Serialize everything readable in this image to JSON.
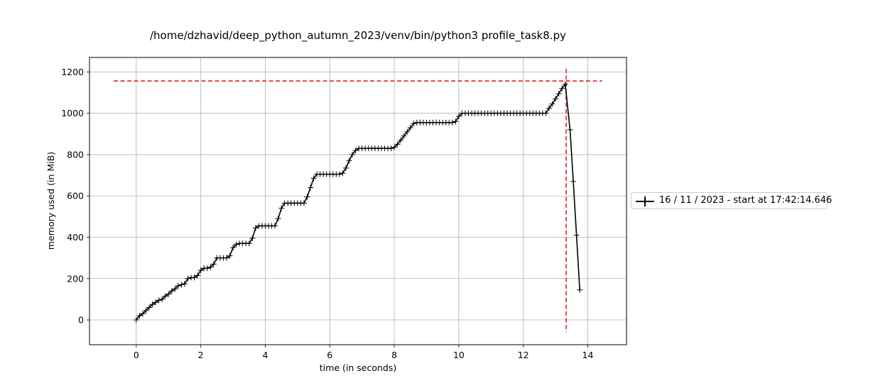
{
  "chart_data": {
    "type": "line",
    "title": "/home/dzhavid/deep_python_autumn_2023/venv/bin/python3 profile_task8.py",
    "xlabel": "time (in seconds)",
    "ylabel": "memory used (in MiB)",
    "xlim": [
      -1.45,
      15.2
    ],
    "ylim": [
      -120,
      1270
    ],
    "xticks": [
      0,
      2,
      4,
      6,
      8,
      10,
      12,
      14
    ],
    "xtick_labels": [
      "0",
      "2",
      "4",
      "6",
      "8",
      "10",
      "12",
      "14"
    ],
    "yticks": [
      0,
      200,
      400,
      600,
      800,
      1000,
      1200
    ],
    "ytick_labels": [
      "0",
      "200",
      "400",
      "600",
      "800",
      "1000",
      "1200"
    ],
    "grid": true,
    "legend_position": "outside-right",
    "colors": {
      "series": "#000000",
      "peak_lines": "#d62728",
      "grid": "#b0b0b0"
    },
    "series": [
      {
        "name": "16 / 11 / 2023 - start at 17:42:14.646",
        "marker": "+",
        "x": [
          0.0,
          0.1,
          0.2,
          0.3,
          0.4,
          0.5,
          0.6,
          0.7,
          0.8,
          0.9,
          1.0,
          1.1,
          1.2,
          1.3,
          1.4,
          1.5,
          1.6,
          1.7,
          1.8,
          1.9,
          2.0,
          2.1,
          2.2,
          2.3,
          2.4,
          2.5,
          2.6,
          2.7,
          2.8,
          2.9,
          3.0,
          3.1,
          3.2,
          3.3,
          3.4,
          3.5,
          3.6,
          3.7,
          3.8,
          3.9,
          4.0,
          4.1,
          4.2,
          4.3,
          4.4,
          4.5,
          4.6,
          4.7,
          4.8,
          4.9,
          5.0,
          5.1,
          5.2,
          5.3,
          5.4,
          5.5,
          5.6,
          5.7,
          5.8,
          5.9,
          6.0,
          6.1,
          6.2,
          6.3,
          6.4,
          6.5,
          6.6,
          6.7,
          6.8,
          6.9,
          7.0,
          7.1,
          7.2,
          7.3,
          7.4,
          7.5,
          7.6,
          7.7,
          7.8,
          7.9,
          8.0,
          8.1,
          8.2,
          8.3,
          8.4,
          8.5,
          8.6,
          8.7,
          8.8,
          8.9,
          9.0,
          9.1,
          9.2,
          9.3,
          9.4,
          9.5,
          9.6,
          9.7,
          9.8,
          9.9,
          10.0,
          10.1,
          10.2,
          10.3,
          10.4,
          10.5,
          10.6,
          10.7,
          10.8,
          10.9,
          11.0,
          11.1,
          11.2,
          11.3,
          11.4,
          11.5,
          11.6,
          11.7,
          11.8,
          11.9,
          12.0,
          12.1,
          12.2,
          12.3,
          12.4,
          12.5,
          12.6,
          12.7,
          12.8,
          12.9,
          13.0,
          13.1,
          13.2,
          13.3,
          13.45,
          13.55,
          13.65,
          13.75
        ],
        "y": [
          0,
          20,
          30,
          45,
          60,
          75,
          85,
          95,
          100,
          115,
          125,
          140,
          150,
          165,
          170,
          175,
          200,
          205,
          205,
          215,
          240,
          250,
          250,
          255,
          270,
          300,
          300,
          300,
          300,
          310,
          350,
          365,
          370,
          370,
          370,
          370,
          395,
          445,
          455,
          455,
          455,
          455,
          455,
          455,
          490,
          540,
          565,
          565,
          565,
          565,
          565,
          565,
          565,
          595,
          640,
          685,
          705,
          705,
          705,
          705,
          705,
          705,
          705,
          705,
          710,
          735,
          770,
          800,
          820,
          830,
          830,
          830,
          830,
          830,
          830,
          830,
          830,
          830,
          830,
          830,
          835,
          850,
          870,
          890,
          910,
          930,
          950,
          955,
          955,
          955,
          955,
          955,
          955,
          955,
          955,
          955,
          955,
          955,
          955,
          960,
          985,
          1000,
          1000,
          1000,
          1000,
          1000,
          1000,
          1000,
          1000,
          1000,
          1000,
          1000,
          1000,
          1000,
          1000,
          1000,
          1000,
          1000,
          1000,
          1000,
          1000,
          1000,
          1000,
          1000,
          1000,
          1000,
          1000,
          1000,
          1025,
          1045,
          1070,
          1095,
          1120,
          1140,
          920,
          670,
          410,
          145
        ]
      }
    ],
    "reference_lines": {
      "peak_memory_y": 1156,
      "peak_time_x": 13.33,
      "hline_x_range": [
        -0.7,
        14.45
      ],
      "vline_y_range": [
        -60,
        1215
      ]
    }
  }
}
